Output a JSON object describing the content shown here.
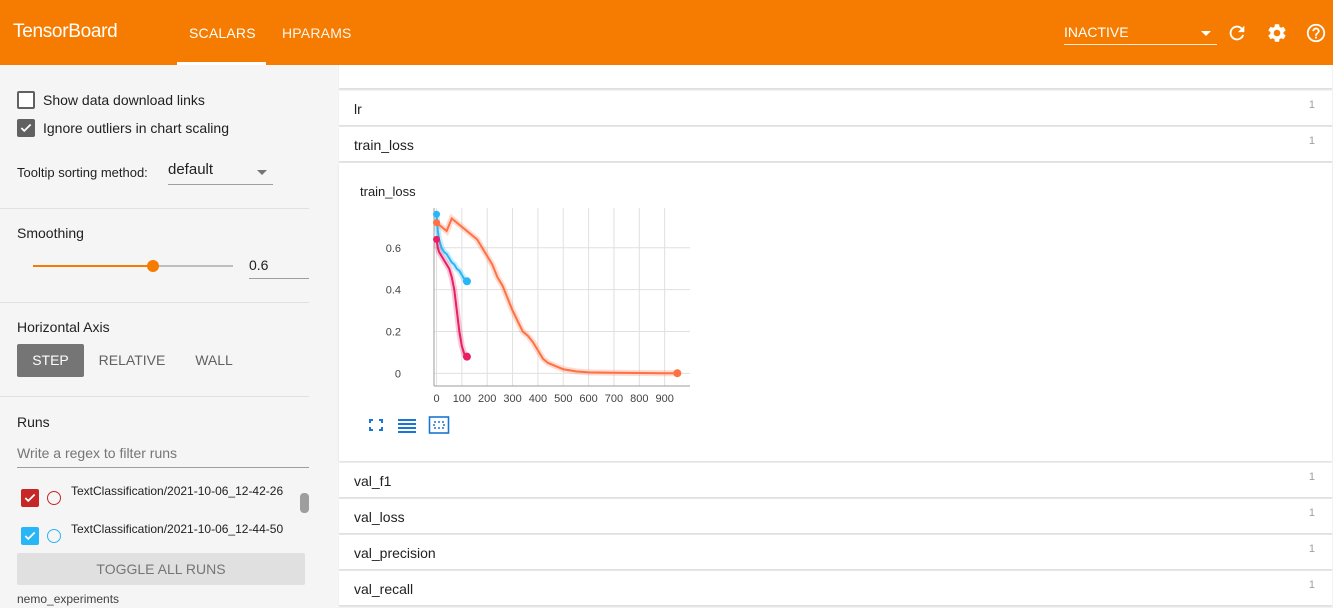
{
  "header": {
    "brand": "TensorBoard",
    "tabs": [
      {
        "label": "SCALARS",
        "active": true
      },
      {
        "label": "HPARAMS",
        "active": false
      }
    ],
    "plugin_select": "INACTIVE",
    "icons": [
      "refresh-icon",
      "settings-icon",
      "help-icon"
    ],
    "accent_color": "#f57c00"
  },
  "sidebar": {
    "show_download_links": {
      "label": "Show data download links",
      "checked": false
    },
    "ignore_outliers": {
      "label": "Ignore outliers in chart scaling",
      "checked": true
    },
    "tooltip_sorting": {
      "label": "Tooltip sorting method:",
      "value": "default"
    },
    "smoothing": {
      "label": "Smoothing",
      "value": "0.6",
      "fraction": 0.6
    },
    "horizontal_axis": {
      "label": "Horizontal Axis",
      "options": [
        "STEP",
        "RELATIVE",
        "WALL"
      ],
      "selected": "STEP"
    },
    "runs": {
      "label": "Runs",
      "filter_placeholder": "Write a regex to filter runs",
      "items": [
        {
          "label": "TextClassification/2021-10-06_12-42-26",
          "checked": true,
          "color": "#c62828"
        },
        {
          "label": "TextClassification/2021-10-06_12-44-50",
          "checked": true,
          "color": "#29b6f6"
        }
      ],
      "toggle_label": "TOGGLE ALL RUNS",
      "footer": "nemo_experiments"
    }
  },
  "main": {
    "cards_top": [
      {
        "name": "lr",
        "count": "1"
      },
      {
        "name": "train_loss",
        "count": "1"
      }
    ],
    "cards_bottom": [
      {
        "name": "val_f1",
        "count": "1"
      },
      {
        "name": "val_loss",
        "count": "1"
      },
      {
        "name": "val_precision",
        "count": "1"
      },
      {
        "name": "val_recall",
        "count": "1"
      }
    ],
    "chart_buttons": [
      "fullscreen-icon",
      "log-scale-icon",
      "fit-domain-icon"
    ]
  },
  "chart_data": {
    "type": "line",
    "title": "train_loss",
    "xlabel": "",
    "ylabel": "",
    "xlim": [
      -10,
      1000
    ],
    "ylim": [
      -0.06,
      0.79
    ],
    "x_ticks": [
      0,
      100,
      200,
      300,
      400,
      500,
      600,
      700,
      800,
      900
    ],
    "y_ticks": [
      0,
      0.2,
      0.4,
      0.6
    ],
    "grid": true,
    "series": [
      {
        "color": "#29b6f6",
        "x": [
          0,
          5,
          10,
          20,
          30,
          40,
          50,
          60,
          70,
          80,
          90,
          100,
          110,
          120
        ],
        "y": [
          0.76,
          0.68,
          0.64,
          0.6,
          0.58,
          0.57,
          0.55,
          0.53,
          0.52,
          0.5,
          0.49,
          0.47,
          0.45,
          0.44
        ]
      },
      {
        "color": "#e91e63",
        "x": [
          0,
          5,
          10,
          20,
          30,
          40,
          50,
          60,
          70,
          80,
          90,
          100,
          110,
          120
        ],
        "y": [
          0.64,
          0.6,
          0.58,
          0.56,
          0.54,
          0.52,
          0.5,
          0.46,
          0.4,
          0.3,
          0.2,
          0.13,
          0.09,
          0.08
        ]
      },
      {
        "color": "#ff7043",
        "x": [
          0,
          20,
          40,
          60,
          80,
          100,
          120,
          140,
          160,
          180,
          200,
          220,
          240,
          260,
          280,
          300,
          320,
          340,
          360,
          380,
          400,
          420,
          440,
          460,
          480,
          500,
          550,
          600,
          700,
          800,
          900,
          950
        ],
        "y": [
          0.72,
          0.7,
          0.68,
          0.74,
          0.72,
          0.7,
          0.68,
          0.66,
          0.64,
          0.6,
          0.56,
          0.52,
          0.46,
          0.42,
          0.36,
          0.3,
          0.25,
          0.2,
          0.18,
          0.15,
          0.11,
          0.07,
          0.05,
          0.04,
          0.03,
          0.02,
          0.01,
          0.005,
          0.003,
          0.002,
          0.001,
          0.001
        ]
      }
    ]
  }
}
